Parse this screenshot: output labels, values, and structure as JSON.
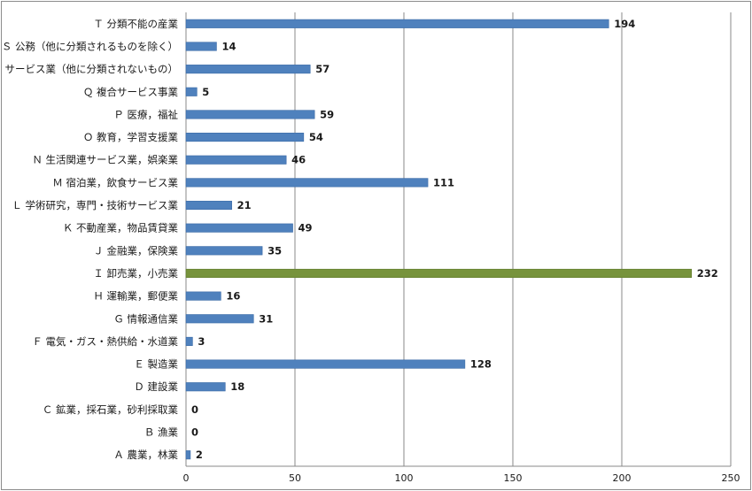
{
  "chart_data": {
    "type": "bar",
    "orientation": "horizontal",
    "categories": [
      "Ｔ 分類不能の産業",
      "Ｓ 公務（他に分類されるものを除く）",
      "Ｒ サービス業（他に分類されないもの）",
      "Ｑ 複合サービス事業",
      "Ｐ 医療，福祉",
      "Ｏ 教育，学習支援業",
      "Ｎ 生活関連サービス業，娯楽業",
      "Ｍ 宿泊業，飲食サービス業",
      "Ｌ 学術研究，専門・技術サービス業",
      "Ｋ 不動産業，物品賃貸業",
      "Ｊ 金融業，保険業",
      "Ｉ 卸売業，小売業",
      "Ｈ 運輸業，郵便業",
      "Ｇ 情報通信業",
      "Ｆ 電気・ガス・熱供給・水道業",
      "Ｅ 製造業",
      "Ｄ 建設業",
      "Ｃ 鉱業，採石業，砂利採取業",
      "Ｂ 漁業",
      "Ａ 農業，林業"
    ],
    "values": [
      194,
      14,
      57,
      5,
      59,
      54,
      46,
      111,
      21,
      49,
      35,
      232,
      16,
      31,
      3,
      128,
      18,
      0,
      0,
      2
    ],
    "value_labels": [
      "194",
      "14",
      "57",
      "5",
      "59",
      "54",
      "46",
      "111",
      "21",
      "49",
      "35",
      "232",
      "16",
      "31",
      "3",
      "128",
      "18",
      "0",
      "0",
      "2"
    ],
    "highlight_index": 11,
    "xlim": [
      0,
      250
    ],
    "xticks": [
      0,
      50,
      100,
      150,
      200,
      250
    ],
    "xtick_labels": [
      "0",
      "50",
      "100",
      "150",
      "200",
      "250"
    ],
    "grid": "vertical",
    "title": "",
    "xlabel": "",
    "ylabel": "",
    "colors": {
      "bar": "#4f81bd",
      "bar_edge": "#3a6aa6",
      "highlight": "#77933c",
      "highlight_edge": "#5f7a2c",
      "grid": "#888888",
      "axis": "#888888",
      "text": "#1a1a1a"
    }
  }
}
